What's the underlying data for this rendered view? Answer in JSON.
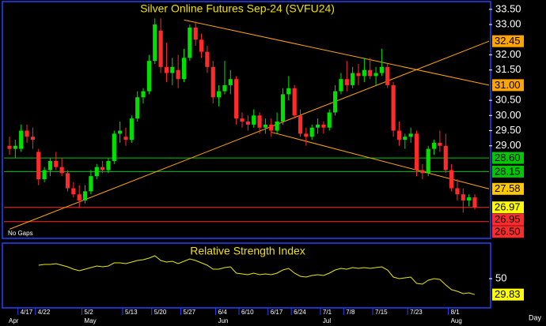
{
  "chart_data": [
    {
      "type": "candlestick",
      "title": "Silver Online Futures Sep-24 (SVFU24)",
      "note": "No Gaps",
      "period_label": "Day",
      "categories": [
        null,
        null,
        "4/17",
        null,
        null,
        "4/22",
        null,
        null,
        null,
        null,
        null,
        null,
        null,
        "5/2",
        null,
        null,
        null,
        null,
        null,
        null,
        "5/13",
        null,
        null,
        null,
        null,
        "5/20",
        null,
        null,
        null,
        null,
        "5/27",
        null,
        null,
        null,
        null,
        null,
        "6/4",
        null,
        null,
        null,
        "6/10",
        null,
        null,
        null,
        null,
        "6/17",
        null,
        null,
        null,
        "6/24",
        null,
        null,
        null,
        null,
        "7/1",
        null,
        null,
        null,
        "7/8",
        null,
        null,
        null,
        null,
        "7/15",
        null,
        null,
        null,
        null,
        null,
        "7/23",
        null,
        null,
        null,
        null,
        null,
        null,
        "8/1",
        null,
        null,
        null,
        null
      ],
      "months": [
        "Apr",
        null,
        null,
        null,
        null,
        null,
        null,
        null,
        null,
        null,
        null,
        null,
        null,
        "May",
        null,
        null,
        null,
        null,
        null,
        null,
        null,
        null,
        null,
        null,
        null,
        null,
        null,
        null,
        null,
        null,
        null,
        null,
        null,
        null,
        null,
        null,
        "Jun",
        null,
        null,
        null,
        null,
        null,
        null,
        null,
        null,
        null,
        null,
        null,
        null,
        null,
        null,
        null,
        null,
        null,
        "Jul",
        null,
        null,
        null,
        null,
        null,
        null,
        null,
        null,
        null,
        null,
        null,
        null,
        null,
        null,
        null,
        null,
        null,
        null,
        null,
        null,
        null,
        "Aug",
        null,
        null,
        null,
        null
      ],
      "open": [
        29.0,
        28.9,
        28.9,
        29.5,
        29.3,
        28.8,
        27.9,
        28.2,
        28.5,
        28.3,
        28.1,
        27.6,
        27.4,
        27.2,
        27.5,
        28.0,
        28.3,
        28.2,
        28.5,
        29.4,
        29.3,
        29.2,
        29.9,
        30.6,
        30.8,
        31.8,
        32.8,
        31.6,
        31.4,
        31.5,
        31.2,
        31.9,
        32.9,
        32.5,
        32.1,
        31.6,
        30.6,
        30.8,
        31.0,
        31.2,
        29.9,
        29.8,
        29.7,
        30.0,
        29.6,
        29.7,
        29.5,
        29.8,
        30.7,
        30.9,
        30.0,
        29.4,
        29.3,
        29.6,
        29.7,
        29.6,
        30.1,
        30.8,
        31.2,
        31.0,
        31.4,
        31.3,
        31.5,
        31.3,
        31.4,
        31.6,
        31.0,
        29.5,
        29.2,
        29.3,
        29.4,
        28.2,
        28.1,
        28.9,
        29.1,
        29.0,
        28.2,
        27.6,
        27.4,
        27.2,
        27.3
      ],
      "high": [
        29.3,
        29.2,
        29.7,
        29.7,
        29.6,
        28.9,
        28.3,
        28.6,
        28.8,
        28.6,
        28.2,
        27.8,
        27.7,
        27.7,
        28.2,
        28.4,
        28.5,
        28.6,
        29.5,
        29.8,
        29.6,
        30.0,
        30.8,
        30.9,
        32.0,
        33.2,
        33.2,
        32.4,
        31.9,
        32.0,
        32.2,
        33.0,
        33.1,
        32.7,
        32.3,
        31.8,
        31.0,
        31.8,
        31.5,
        31.3,
        30.1,
        30.0,
        30.2,
        30.1,
        29.9,
        29.9,
        30.1,
        30.9,
        31.3,
        31.0,
        30.2,
        29.6,
        29.7,
        29.9,
        29.8,
        30.2,
        31.0,
        31.4,
        31.8,
        31.6,
        31.7,
        31.9,
        31.9,
        31.6,
        32.2,
        31.7,
        31.1,
        29.8,
        29.4,
        29.6,
        29.5,
        28.4,
        29.0,
        29.2,
        29.5,
        29.4,
        28.4,
        27.9,
        27.6,
        27.4,
        27.4
      ],
      "low": [
        28.7,
        28.6,
        28.8,
        29.1,
        28.9,
        27.7,
        27.8,
        28.0,
        28.2,
        28.0,
        27.5,
        27.3,
        26.95,
        27.1,
        27.4,
        27.9,
        28.1,
        28.1,
        28.4,
        29.1,
        29.0,
        29.1,
        29.8,
        30.4,
        30.7,
        31.7,
        31.4,
        31.1,
        31.0,
        30.9,
        31.1,
        31.8,
        32.3,
        31.9,
        31.4,
        30.4,
        30.3,
        30.7,
        30.7,
        29.7,
        29.6,
        29.5,
        29.6,
        29.4,
        29.4,
        29.3,
        29.4,
        29.7,
        30.5,
        29.9,
        29.3,
        29.0,
        29.2,
        29.4,
        29.4,
        29.5,
        30.0,
        30.7,
        30.8,
        30.9,
        31.0,
        31.1,
        31.2,
        31.0,
        31.3,
        30.9,
        29.3,
        29.0,
        28.9,
        29.1,
        28.0,
        27.9,
        28.0,
        28.7,
        28.8,
        28.1,
        27.5,
        27.2,
        26.8,
        27.0,
        26.9
      ],
      "close": [
        28.9,
        29.0,
        29.5,
        29.3,
        29.2,
        27.9,
        28.2,
        28.5,
        28.3,
        28.1,
        27.6,
        27.4,
        27.2,
        27.5,
        28.0,
        28.3,
        28.2,
        28.5,
        29.4,
        29.5,
        29.2,
        29.9,
        30.6,
        30.8,
        31.8,
        33.0,
        31.6,
        31.4,
        31.6,
        31.2,
        31.9,
        32.9,
        32.5,
        32.1,
        31.6,
        30.6,
        30.8,
        31.0,
        31.2,
        29.9,
        29.8,
        29.7,
        30.0,
        29.6,
        29.7,
        29.5,
        29.8,
        30.7,
        30.9,
        30.0,
        29.4,
        29.3,
        29.6,
        29.7,
        29.6,
        30.1,
        30.8,
        31.2,
        31.0,
        31.4,
        31.3,
        31.5,
        31.3,
        31.4,
        31.6,
        31.0,
        29.5,
        29.2,
        29.3,
        29.4,
        28.2,
        28.1,
        28.9,
        29.1,
        29.0,
        28.2,
        27.6,
        27.4,
        27.2,
        27.3,
        26.97
      ],
      "up_color": "#00e000",
      "down_color": "#ff2a2a",
      "ylim": [
        26.0,
        33.73
      ],
      "yticks": [
        {
          "value": 33.5,
          "label": "33.50"
        },
        {
          "value": 33.0,
          "label": "33.00"
        },
        {
          "value": 32.0,
          "label": "32.00"
        },
        {
          "value": 31.5,
          "label": "31.50"
        },
        {
          "value": 30.5,
          "label": "30.50"
        },
        {
          "value": 30.0,
          "label": "30.00"
        },
        {
          "value": 29.5,
          "label": "29.50"
        },
        {
          "value": 29.0,
          "label": "29.00"
        }
      ],
      "trendlines": [
        {
          "start_index": 30,
          "start": 33.15,
          "end": 31.0,
          "end_label": "31.00",
          "color": "#ffa500",
          "box": "#ffa500"
        },
        {
          "start_index": 0,
          "start": 26.25,
          "end": 32.45,
          "end_label": "32.45",
          "color": "#ffa500",
          "box": "#ffa500"
        },
        {
          "start_index": 45,
          "start": 29.45,
          "end": 27.58,
          "end_label": "27.58",
          "color": "#ffa500",
          "box": "#ffc800"
        }
      ],
      "levels": [
        {
          "value": 28.6,
          "label": "28.60",
          "color": "#00c800",
          "box": "#00c800",
          "line": true
        },
        {
          "value": 28.15,
          "label": "28.15",
          "color": "#00c800",
          "box": "#00c800",
          "line": true
        },
        {
          "value": 26.97,
          "label": "26.97",
          "color": "#ff2a2a",
          "box": "#ffff00",
          "line": true
        },
        {
          "value": 26.95,
          "label": "26.95",
          "color": "#ff2a2a",
          "box": "#ff2a2a",
          "line": false
        },
        {
          "value": 26.5,
          "label": "26.50",
          "color": "#ff2a2a",
          "box": "#ff2a2a",
          "line": true
        }
      ]
    },
    {
      "type": "line",
      "title": "Relative Strength Index",
      "color": "#e8e800",
      "values": [
        null,
        null,
        null,
        null,
        null,
        67,
        68,
        68,
        69,
        67,
        65,
        62,
        60,
        62,
        64,
        66,
        65,
        66,
        70,
        70,
        69,
        71,
        73,
        74,
        76,
        79,
        73,
        71,
        72,
        69,
        72,
        75,
        73,
        70,
        67,
        62,
        62,
        64,
        65,
        57,
        56,
        55,
        57,
        55,
        56,
        55,
        57,
        61,
        63,
        57,
        53,
        52,
        54,
        55,
        54,
        57,
        61,
        63,
        62,
        64,
        63,
        64,
        63,
        64,
        65,
        61,
        52,
        50,
        51,
        52,
        44,
        43,
        48,
        50,
        49,
        42,
        36,
        34,
        31,
        32,
        29.83
      ],
      "last_box": "#ffff00",
      "ylim": [
        15,
        93
      ],
      "yticks": [
        50
      ]
    }
  ]
}
